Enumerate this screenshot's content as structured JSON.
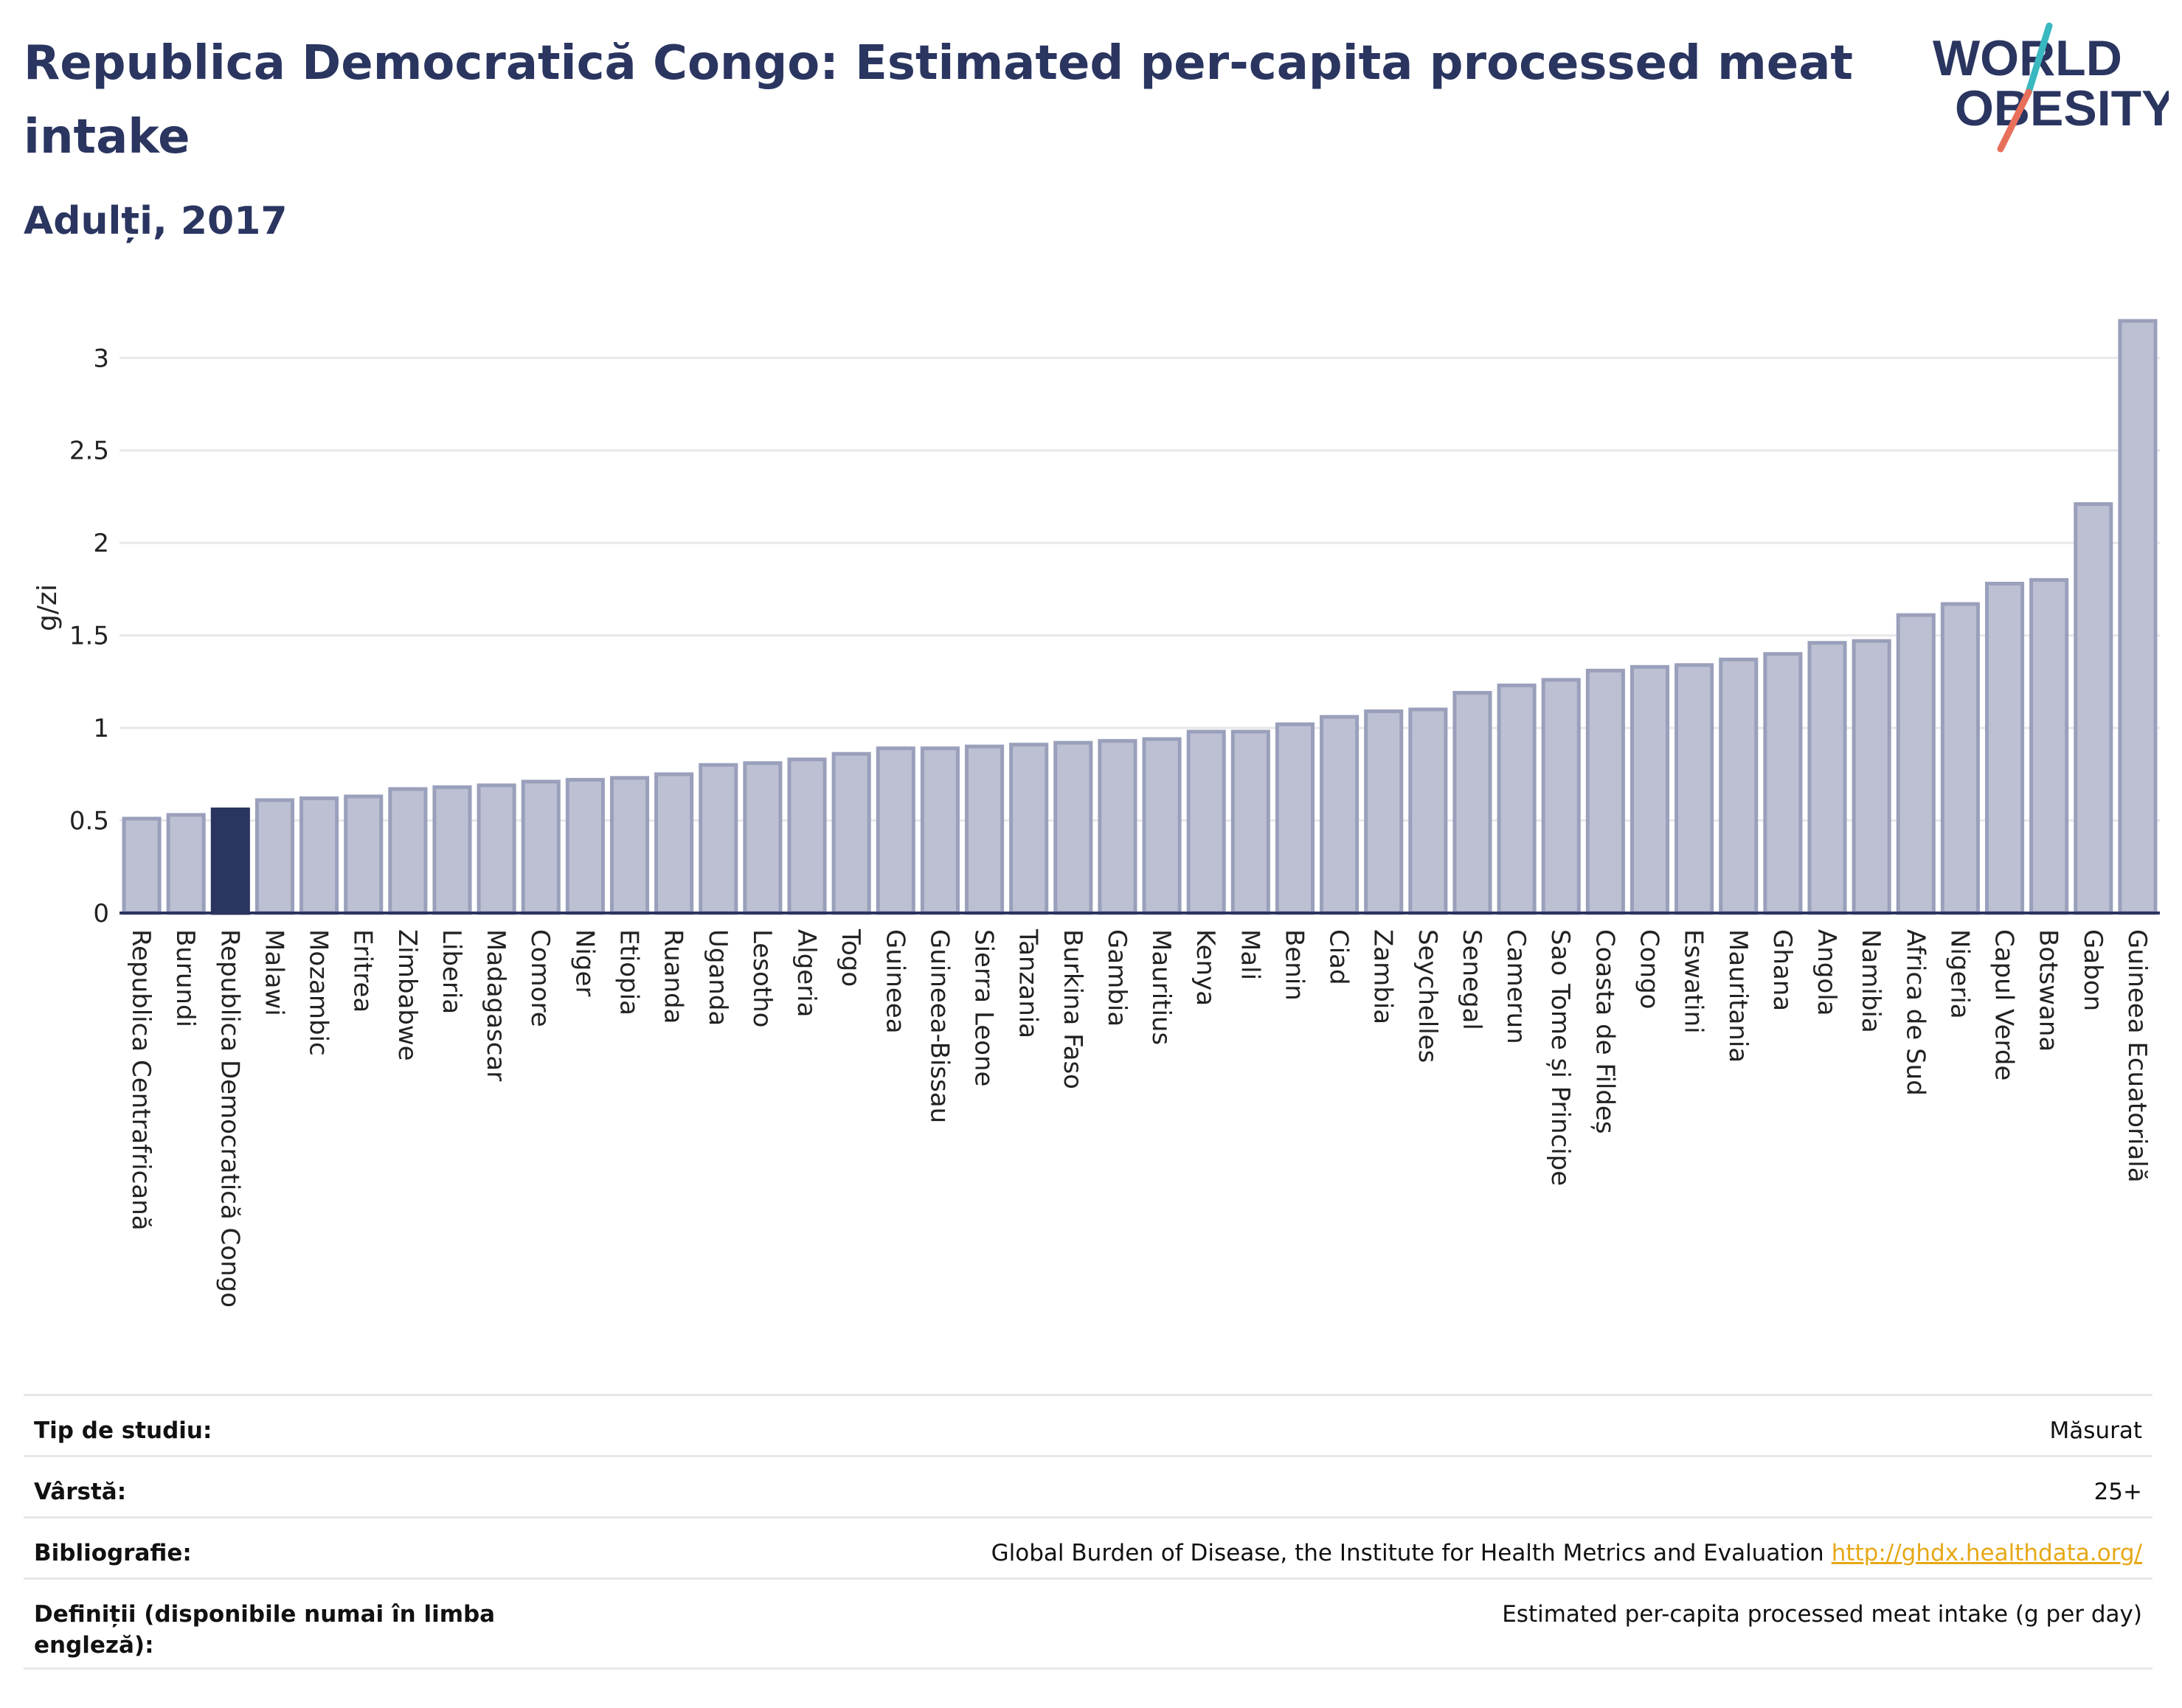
{
  "header": {
    "title": "Republica Democratică Congo: Estimated per-capita processed meat intake",
    "subtitle": "Adulți, 2017"
  },
  "logo": {
    "line1": "WORLD",
    "line2": "OBESITY",
    "accent_teal": "#3ab8c0",
    "accent_red": "#e8705a"
  },
  "colors": {
    "bar": "#bcc0d2",
    "bar_stroke": "#9aa0bb",
    "highlight": "#2a3560",
    "text": "#2a3560"
  },
  "chart_data": {
    "type": "bar",
    "title": "Republica Democratică Congo: Estimated per-capita processed meat intake",
    "subtitle": "Adulți, 2017",
    "xlabel": "",
    "ylabel": "g/zi",
    "ylim": [
      0,
      3.3
    ],
    "yticks": [
      0,
      0.5,
      1,
      1.5,
      2,
      2.5,
      3
    ],
    "grid": true,
    "highlight": "Republica Democratică Congo",
    "categories": [
      "Republica Centrafricană",
      "Burundi",
      "Republica Democratică Congo",
      "Malawi",
      "Mozambic",
      "Eritrea",
      "Zimbabwe",
      "Liberia",
      "Madagascar",
      "Comore",
      "Niger",
      "Etiopia",
      "Ruanda",
      "Uganda",
      "Lesotho",
      "Algeria",
      "Togo",
      "Guineea",
      "Guineea-Bissau",
      "Sierra Leone",
      "Tanzania",
      "Burkina Faso",
      "Gambia",
      "Mauritius",
      "Kenya",
      "Mali",
      "Benin",
      "Ciad",
      "Zambia",
      "Seychelles",
      "Senegal",
      "Camerun",
      "Sao Tome și Principe",
      "Coasta de Fildeș",
      "Congo",
      "Eswatini",
      "Mauritania",
      "Ghana",
      "Angola",
      "Namibia",
      "Africa de Sud",
      "Nigeria",
      "Capul Verde",
      "Botswana",
      "Gabon",
      "Guineea Ecuatorială"
    ],
    "values": [
      0.51,
      0.53,
      0.56,
      0.61,
      0.62,
      0.63,
      0.67,
      0.68,
      0.69,
      0.71,
      0.72,
      0.73,
      0.75,
      0.8,
      0.81,
      0.83,
      0.86,
      0.89,
      0.89,
      0.9,
      0.91,
      0.92,
      0.93,
      0.94,
      0.98,
      0.98,
      1.02,
      1.06,
      1.09,
      1.1,
      1.19,
      1.23,
      1.26,
      1.31,
      1.33,
      1.34,
      1.37,
      1.4,
      1.46,
      1.47,
      1.61,
      1.67,
      1.78,
      1.8,
      2.21,
      3.2
    ]
  },
  "info": [
    {
      "label": "Tip de studiu:",
      "value": "Măsurat"
    },
    {
      "label": "Vârstă:",
      "value": "25+"
    },
    {
      "label": "Bibliografie:",
      "value": "Global Burden of Disease, the Institute for Health Metrics and Evaluation",
      "link": "http://ghdx.healthdata.org/"
    },
    {
      "label": "Definiții (disponibile numai în limba engleză):",
      "value": "Estimated per-capita processed meat intake (g per day)"
    }
  ]
}
